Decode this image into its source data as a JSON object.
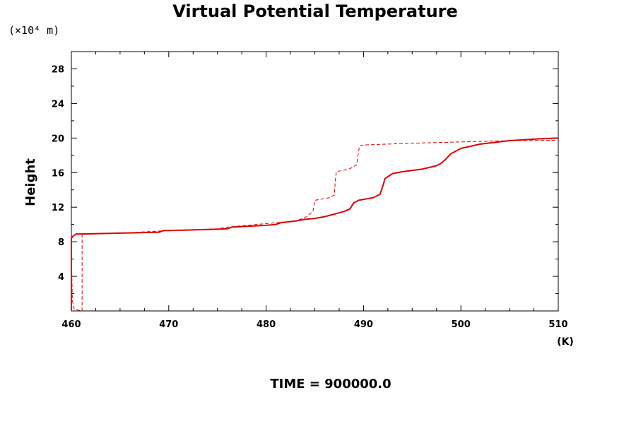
{
  "chart_data": {
    "type": "line",
    "title": "Virtual Potential Temperature",
    "y_unit": "(×10⁴ m)",
    "xlabel": "",
    "x_unit": "(K)",
    "ylabel": "Height",
    "footer": "TIME = 900000.0",
    "xlim": [
      460,
      510
    ],
    "ylim": [
      0,
      30
    ],
    "x_ticks": [
      "460",
      "470",
      "480",
      "490",
      "500",
      "510"
    ],
    "y_ticks": [
      "4",
      "8",
      "12",
      "16",
      "20",
      "24",
      "28"
    ],
    "grid": false,
    "series": [
      {
        "style": "solid",
        "color": "#e00000",
        "x": [
          460.0,
          460.0,
          460.2,
          460.5,
          461.0,
          465.0,
          469.0,
          469.5,
          470.0,
          475.0,
          476.0,
          476.5,
          480.0,
          481.0,
          481.5,
          483.0,
          484.0,
          485.0,
          486.0,
          487.0,
          488.0,
          488.6,
          489.0,
          489.5,
          490.0,
          491.0,
          491.7,
          492.0,
          492.2,
          493.0,
          494.0,
          496.0,
          497.5,
          498.0,
          498.4,
          499.0,
          500.0,
          502.0,
          505.0,
          508.0,
          510.0
        ],
        "y": [
          0.0,
          8.4,
          8.7,
          8.9,
          8.9,
          9.0,
          9.1,
          9.3,
          9.3,
          9.45,
          9.5,
          9.7,
          9.9,
          10.0,
          10.2,
          10.4,
          10.6,
          10.7,
          10.9,
          11.2,
          11.5,
          11.8,
          12.5,
          12.8,
          12.9,
          13.1,
          13.5,
          14.5,
          15.3,
          15.9,
          16.1,
          16.4,
          16.8,
          17.1,
          17.5,
          18.2,
          18.8,
          19.3,
          19.7,
          19.9,
          20.0
        ]
      },
      {
        "style": "dashed",
        "color": "#e00000",
        "x": [
          460.0,
          460.05,
          460.1,
          460.3,
          461.1,
          461.1,
          461.1,
          465.0,
          470.0,
          475.0,
          476.0,
          478.0,
          480.0,
          481.0,
          483.0,
          484.0,
          484.8,
          485.0,
          485.5,
          486.5,
          487.0,
          487.1,
          487.2,
          488.5,
          489.3,
          489.5,
          489.6,
          490.0,
          495.0,
          500.0,
          505.0,
          510.0
        ],
        "y": [
          5.8,
          4.0,
          1.2,
          0.2,
          0.0,
          8.5,
          8.85,
          9.0,
          9.3,
          9.5,
          9.7,
          9.9,
          10.1,
          10.2,
          10.4,
          10.8,
          11.5,
          12.8,
          12.9,
          13.1,
          13.4,
          15.0,
          16.1,
          16.4,
          16.9,
          18.5,
          19.1,
          19.2,
          19.4,
          19.55,
          19.7,
          19.75
        ]
      }
    ]
  }
}
